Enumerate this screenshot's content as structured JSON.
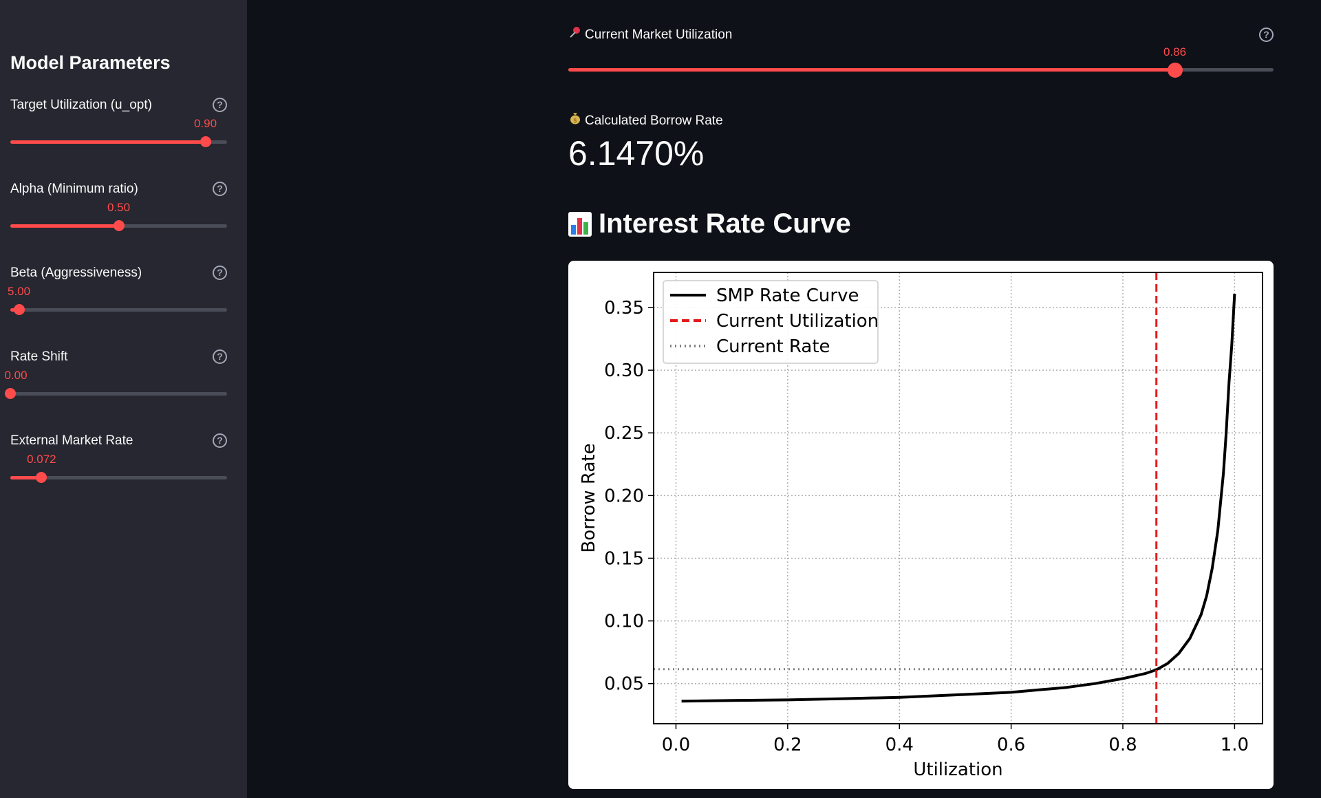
{
  "sidebar": {
    "title": "Model Parameters",
    "params": [
      {
        "label": "Target Utilization (u_opt)",
        "value_text": "0.90",
        "fraction": 0.9
      },
      {
        "label": "Alpha (Minimum ratio)",
        "value_text": "0.50",
        "fraction": 0.5
      },
      {
        "label": "Beta (Aggressiveness)",
        "value_text": "5.00",
        "fraction": 0.04
      },
      {
        "label": "Rate Shift",
        "value_text": "0.00",
        "fraction": 0.0
      },
      {
        "label": "External Market Rate",
        "value_text": "0.072",
        "fraction": 0.144
      }
    ],
    "help_glyph": "?"
  },
  "main": {
    "utilization": {
      "icon": "pushpin-icon",
      "label": "Current Market Utilization",
      "value_text": "0.86",
      "fraction": 0.86
    },
    "borrow": {
      "icon": "money-bag-icon",
      "label": "Calculated Borrow Rate",
      "value": "6.1470%"
    },
    "section_title": "Interest Rate Curve",
    "section_icon": "bar-chart-icon"
  },
  "colors": {
    "accent": "#ff4b4b",
    "background": "#0e1117",
    "sidebar": "#262730"
  },
  "chart_data": {
    "type": "line",
    "xlabel": "Utilization",
    "ylabel": "Borrow Rate",
    "xlim": [
      -0.04,
      1.05
    ],
    "ylim": [
      0.018,
      0.378
    ],
    "xticks": [
      0.0,
      0.2,
      0.4,
      0.6,
      0.8,
      1.0
    ],
    "xtick_labels": [
      "0.0",
      "0.2",
      "0.4",
      "0.6",
      "0.8",
      "1.0"
    ],
    "yticks": [
      0.05,
      0.1,
      0.15,
      0.2,
      0.25,
      0.3,
      0.35
    ],
    "ytick_labels": [
      "0.05",
      "0.10",
      "0.15",
      "0.20",
      "0.25",
      "0.30",
      "0.35"
    ],
    "grid": true,
    "legend_position": "top-left",
    "series": [
      {
        "name": "SMP Rate Curve",
        "color": "#000000",
        "style": "solid",
        "x": [
          0.01,
          0.1,
          0.2,
          0.3,
          0.4,
          0.5,
          0.6,
          0.65,
          0.7,
          0.75,
          0.8,
          0.84,
          0.86,
          0.88,
          0.9,
          0.92,
          0.94,
          0.95,
          0.96,
          0.97,
          0.98,
          0.985,
          0.99,
          0.995,
          1.0
        ],
        "y": [
          0.036,
          0.0365,
          0.037,
          0.038,
          0.039,
          0.041,
          0.043,
          0.045,
          0.047,
          0.05,
          0.054,
          0.058,
          0.061,
          0.066,
          0.074,
          0.086,
          0.105,
          0.12,
          0.142,
          0.172,
          0.218,
          0.25,
          0.29,
          0.32,
          0.361
        ]
      },
      {
        "name": "Current Utilization",
        "color": "#e41a1c",
        "style": "dashed",
        "x_value": 0.86
      },
      {
        "name": "Current Rate",
        "color": "#808080",
        "style": "dotted",
        "y_value": 0.06147
      }
    ]
  }
}
